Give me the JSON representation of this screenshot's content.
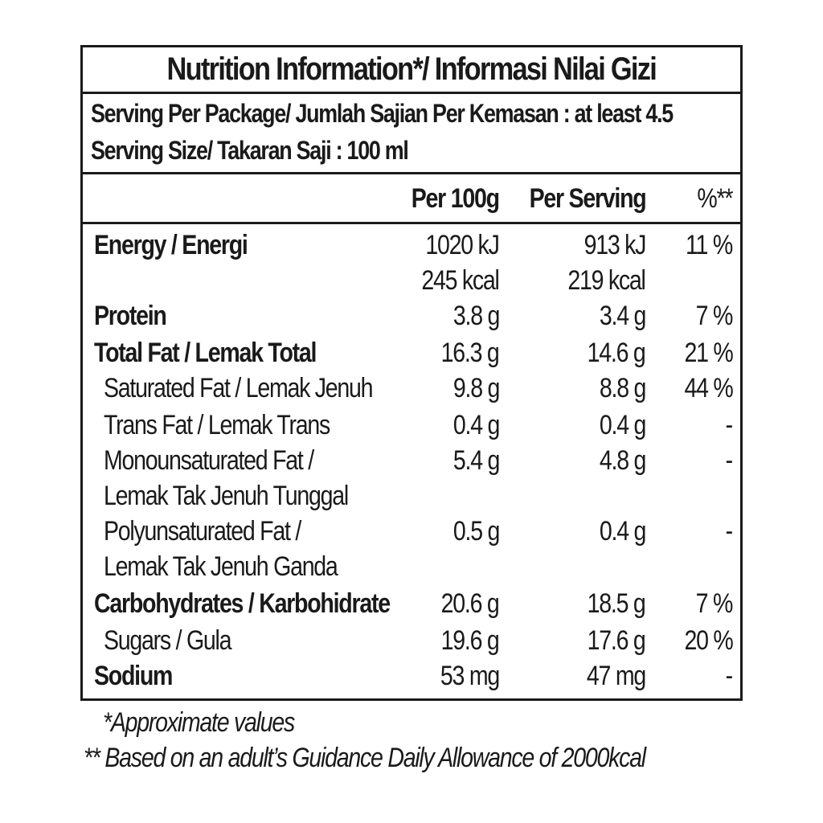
{
  "title": "Nutrition Information*/ Informasi Nilai Gizi",
  "serving": {
    "per_package": "Serving Per Package/ Jumlah Sajian Per Kemasan : at least 4.5",
    "size": "Serving Size/ Takaran Saji : 100 ml"
  },
  "columns": {
    "per100": "Per 100g",
    "per_serving": "Per Serving",
    "pct": "%**"
  },
  "rows": [
    {
      "name": "Energy / Energi",
      "per100": "1020 kJ",
      "per_serving": "913 kJ",
      "pct": "11 %"
    },
    {
      "name": "",
      "per100": "245 kcal",
      "per_serving": "219 kcal",
      "pct": ""
    },
    {
      "name": "Protein",
      "per100": "3.8 g",
      "per_serving": "3.4 g",
      "pct": "7 %"
    },
    {
      "name": "Total Fat / Lemak Total",
      "per100": "16.3 g",
      "per_serving": "14.6 g",
      "pct": "21 %"
    },
    {
      "name": "Saturated Fat / Lemak Jenuh",
      "per100": "9.8 g",
      "per_serving": "8.8 g",
      "pct": "44 %"
    },
    {
      "name": "Trans Fat / Lemak Trans",
      "per100": "0.4 g",
      "per_serving": "0.4 g",
      "pct": "-"
    },
    {
      "name": "Monounsaturated Fat /",
      "per100": "5.4 g",
      "per_serving": "4.8 g",
      "pct": "-"
    },
    {
      "name": "Lemak Tak Jenuh Tunggal",
      "per100": "",
      "per_serving": "",
      "pct": ""
    },
    {
      "name": "Polyunsaturated Fat /",
      "per100": "0.5 g",
      "per_serving": "0.4 g",
      "pct": "-"
    },
    {
      "name": "Lemak Tak Jenuh Ganda",
      "per100": "",
      "per_serving": "",
      "pct": ""
    },
    {
      "name": "Carbohydrates / Karbohidrate",
      "per100": "20.6 g",
      "per_serving": "18.5 g",
      "pct": "7 %"
    },
    {
      "name": "Sugars / Gula",
      "per100": "19.6 g",
      "per_serving": "17.6 g",
      "pct": "20 %"
    },
    {
      "name": "Sodium",
      "per100": "53 mg",
      "per_serving": "47 mg",
      "pct": "-"
    }
  ],
  "footnotes": {
    "approx": "*Approximate values",
    "gda": "** Based on an adult’s Guidance Daily Allowance of 2000kcal"
  }
}
